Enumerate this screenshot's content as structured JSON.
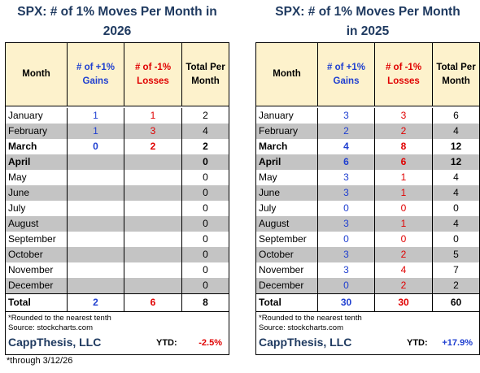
{
  "left": {
    "title_line1": "SPX:  # of 1% Moves Per Month in",
    "title_line2": "2026",
    "headers": {
      "month": "Month",
      "gains": "# of +1% Gains",
      "losses": "# of -1% Losses",
      "total": "Total Per Month"
    },
    "rows": [
      {
        "month": "January",
        "gains": "1",
        "losses": "1",
        "total": "2",
        "bold": false
      },
      {
        "month": "February",
        "gains": "1",
        "losses": "3",
        "total": "4",
        "bold": false
      },
      {
        "month": "March",
        "gains": "0",
        "losses": "2",
        "total": "2",
        "bold": true
      },
      {
        "month": "April",
        "gains": "",
        "losses": "",
        "total": "0",
        "bold": true
      },
      {
        "month": "May",
        "gains": "",
        "losses": "",
        "total": "0",
        "bold": false
      },
      {
        "month": "June",
        "gains": "",
        "losses": "",
        "total": "0",
        "bold": false
      },
      {
        "month": "July",
        "gains": "",
        "losses": "",
        "total": "0",
        "bold": false
      },
      {
        "month": "August",
        "gains": "",
        "losses": "",
        "total": "0",
        "bold": false
      },
      {
        "month": "September",
        "gains": "",
        "losses": "",
        "total": "0",
        "bold": false
      },
      {
        "month": "October",
        "gains": "",
        "losses": "",
        "total": "0",
        "bold": false
      },
      {
        "month": "November",
        "gains": "",
        "losses": "",
        "total": "0",
        "bold": false
      },
      {
        "month": "December",
        "gains": "",
        "losses": "",
        "total": "0",
        "bold": false
      }
    ],
    "total": {
      "label": "Total",
      "gains": "2",
      "losses": "6",
      "total": "8"
    },
    "note1": "*Rounded to the nearest tenth",
    "note2": "Source: stockcharts.com",
    "brand": "CappThesis, LLC",
    "ytd_label": "YTD:",
    "ytd_value": "-2.5%"
  },
  "right": {
    "title_line1": "SPX:  # of 1% Moves Per Month",
    "title_line2": "in 2025",
    "headers": {
      "month": "Month",
      "gains": "# of +1% Gains",
      "losses": "# of -1% Losses",
      "total": "Total Per Month"
    },
    "rows": [
      {
        "month": "January",
        "gains": "3",
        "losses": "3",
        "total": "6",
        "bold": false
      },
      {
        "month": "February",
        "gains": "2",
        "losses": "2",
        "total": "4",
        "bold": false
      },
      {
        "month": "March",
        "gains": "4",
        "losses": "8",
        "total": "12",
        "bold": true
      },
      {
        "month": "April",
        "gains": "6",
        "losses": "6",
        "total": "12",
        "bold": true
      },
      {
        "month": "May",
        "gains": "3",
        "losses": "1",
        "total": "4",
        "bold": false
      },
      {
        "month": "June",
        "gains": "3",
        "losses": "1",
        "total": "4",
        "bold": false
      },
      {
        "month": "July",
        "gains": "0",
        "losses": "0",
        "total": "0",
        "bold": false
      },
      {
        "month": "August",
        "gains": "3",
        "losses": "1",
        "total": "4",
        "bold": false
      },
      {
        "month": "September",
        "gains": "0",
        "losses": "0",
        "total": "0",
        "bold": false
      },
      {
        "month": "October",
        "gains": "3",
        "losses": "2",
        "total": "5",
        "bold": false
      },
      {
        "month": "November",
        "gains": "3",
        "losses": "4",
        "total": "7",
        "bold": false
      },
      {
        "month": "December",
        "gains": "0",
        "losses": "2",
        "total": "2",
        "bold": false
      }
    ],
    "total": {
      "label": "Total",
      "gains": "30",
      "losses": "30",
      "total": "60"
    },
    "note1": "*Rounded to the nearest tenth",
    "note2": "Source: stockcharts.com",
    "brand": "CappThesis, LLC",
    "ytd_label": "YTD:",
    "ytd_value": "+17.9%"
  },
  "footnote": "*through 3/12/26",
  "colors": {
    "blue": "#1f3fd0",
    "red": "#e00000",
    "header_bg": "#fdf2cc",
    "stripe": "#c4c4c4",
    "title": "#1f3a60"
  }
}
